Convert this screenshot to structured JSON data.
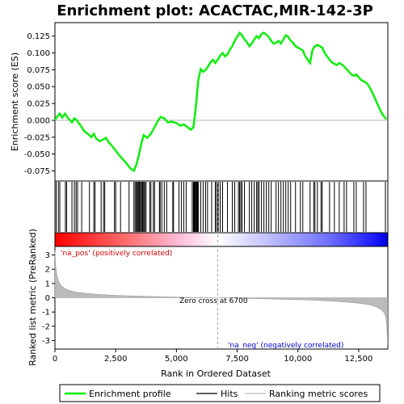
{
  "chart_data": {
    "type": "line",
    "title": "Enrichment plot: ACACTAC,MIR-142-3P",
    "xlabel": "Rank in Ordered Dataset",
    "es_ylabel": "Enrichment score (ES)",
    "metric_ylabel": "Ranked list metric (PreRanked)",
    "x_ticks": [
      "0",
      "2,500",
      "5,000",
      "7,500",
      "10,000",
      "12,500"
    ],
    "x_tick_values": [
      0,
      2500,
      5000,
      7500,
      10000,
      12500
    ],
    "xlim": [
      0,
      13700
    ],
    "es_ylim": [
      -0.09,
      0.145
    ],
    "es_ticks": [
      "-0.075",
      "-0.050",
      "-0.025",
      "0.000",
      "0.025",
      "0.050",
      "0.075",
      "0.100",
      "0.125"
    ],
    "es_tick_values": [
      -0.075,
      -0.05,
      -0.025,
      0.0,
      0.025,
      0.05,
      0.075,
      0.1,
      0.125
    ],
    "metric_ylim": [
      -3.6,
      3.6
    ],
    "metric_ticks": [
      "3",
      "2",
      "1",
      "0",
      "-1",
      "-2",
      "-3"
    ],
    "metric_tick_values": [
      3,
      2,
      1,
      0,
      -1,
      -2,
      -3
    ],
    "zero_cross_label": "Zero cross at 6700",
    "zero_cross": 6700,
    "pos_label": "'na_pos' (positively correlated)",
    "neg_label": "'na_neg' (negatively correlated)",
    "legend": [
      "Enrichment profile",
      "Hits",
      "Ranking metric scores"
    ],
    "colors": {
      "profile": "#00ee00",
      "hits": "#000000",
      "metric": "#bbbbbb",
      "pos_text": "#cc0000",
      "neg_text": "#0000cc"
    },
    "series": [
      {
        "name": "Enrichment profile",
        "x": [
          0,
          100,
          200,
          300,
          420,
          500,
          600,
          700,
          800,
          880,
          1000,
          1100,
          1200,
          1350,
          1500,
          1600,
          1700,
          1850,
          2000,
          2100,
          2200,
          2350,
          2500,
          2650,
          2800,
          2950,
          3100,
          3250,
          3350,
          3450,
          3550,
          3650,
          3800,
          3950,
          4100,
          4250,
          4350,
          4500,
          4650,
          4800,
          5000,
          5150,
          5300,
          5450,
          5600,
          5700,
          5750,
          5800,
          5850,
          5900,
          6000,
          6100,
          6200,
          6300,
          6400,
          6500,
          6600,
          6700,
          6800,
          6900,
          7000,
          7100,
          7200,
          7300,
          7400,
          7500,
          7600,
          7700,
          7800,
          7900,
          8000,
          8100,
          8200,
          8300,
          8400,
          8500,
          8600,
          8700,
          8800,
          8900,
          9000,
          9100,
          9200,
          9300,
          9400,
          9500,
          9600,
          9700,
          9800,
          9900,
          10000,
          10100,
          10200,
          10300,
          10400,
          10500,
          10600,
          10700,
          10800,
          10900,
          11000,
          11100,
          11200,
          11300,
          11400,
          11500,
          11600,
          11700,
          11800,
          11900,
          12000,
          12100,
          12200,
          12300,
          12400,
          12500,
          12600,
          12700,
          12800,
          12900,
          13000,
          13100,
          13200,
          13300,
          13400,
          13500,
          13600,
          13650
        ],
        "y": [
          0.0,
          0.006,
          0.01,
          0.004,
          0.01,
          0.005,
          0.001,
          -0.003,
          0.003,
          0.001,
          -0.005,
          -0.01,
          -0.016,
          -0.02,
          -0.025,
          -0.02,
          -0.027,
          -0.031,
          -0.028,
          -0.026,
          -0.032,
          -0.038,
          -0.045,
          -0.052,
          -0.058,
          -0.064,
          -0.071,
          -0.075,
          -0.066,
          -0.052,
          -0.035,
          -0.022,
          -0.026,
          -0.02,
          -0.01,
          0.0,
          0.005,
          0.003,
          -0.003,
          -0.002,
          -0.004,
          -0.008,
          -0.006,
          -0.01,
          -0.014,
          -0.01,
          0.005,
          0.02,
          0.04,
          0.06,
          0.076,
          0.072,
          0.075,
          0.08,
          0.086,
          0.09,
          0.085,
          0.09,
          0.096,
          0.1,
          0.095,
          0.098,
          0.105,
          0.11,
          0.118,
          0.124,
          0.13,
          0.126,
          0.12,
          0.116,
          0.11,
          0.114,
          0.12,
          0.125,
          0.122,
          0.128,
          0.13,
          0.127,
          0.124,
          0.118,
          0.114,
          0.115,
          0.118,
          0.114,
          0.12,
          0.126,
          0.124,
          0.118,
          0.115,
          0.11,
          0.108,
          0.106,
          0.104,
          0.095,
          0.09,
          0.085,
          0.105,
          0.11,
          0.112,
          0.11,
          0.108,
          0.1,
          0.095,
          0.09,
          0.086,
          0.084,
          0.082,
          0.085,
          0.083,
          0.08,
          0.076,
          0.072,
          0.068,
          0.066,
          0.068,
          0.064,
          0.06,
          0.058,
          0.056,
          0.052,
          0.046,
          0.038,
          0.03,
          0.022,
          0.014,
          0.008,
          0.003,
          0.002
        ]
      },
      {
        "name": "Hits",
        "x": [
          50,
          140,
          200,
          430,
          480,
          700,
          800,
          870,
          930,
          1100,
          1420,
          1600,
          1650,
          1900,
          2000,
          2050,
          2450,
          2500,
          2700,
          3050,
          3250,
          3300,
          3350,
          3380,
          3420,
          3450,
          3480,
          3520,
          3560,
          3600,
          3620,
          3660,
          3700,
          3750,
          3900,
          3950,
          4050,
          4100,
          4300,
          4330,
          4400,
          4500,
          4600,
          4850,
          4880,
          5100,
          5200,
          5300,
          5400,
          5650,
          5700,
          5720,
          5750,
          5780,
          5810,
          5830,
          5850,
          5870,
          5900,
          6000,
          6100,
          6200,
          6280,
          6450,
          6600,
          6650,
          6700,
          6720,
          6800,
          6900,
          7100,
          7300,
          7400,
          7550,
          7600,
          7650,
          7700,
          7800,
          8000,
          8100,
          8200,
          8300,
          8350,
          8400,
          8500,
          8600,
          8700,
          8800,
          8900,
          9100,
          9200,
          9300,
          9400,
          9500,
          9600,
          9700,
          9900,
          10100,
          10200,
          10500,
          10650,
          10700,
          10800,
          10950,
          11000,
          11300,
          11500,
          11700,
          11900,
          12000,
          12300,
          12400,
          12700,
          12800,
          13600
        ]
      },
      {
        "name": "Ranking metric scores",
        "x": [
          0,
          30,
          80,
          150,
          250,
          400,
          600,
          900,
          1300,
          1800,
          2500,
          3500,
          4500,
          5500,
          6300,
          6700,
          7500,
          8500,
          9500,
          10500,
          11300,
          12000,
          12500,
          12900,
          13200,
          13400,
          13550,
          13620,
          13660,
          13690
        ],
        "y": [
          3.3,
          2.2,
          1.6,
          1.15,
          0.85,
          0.65,
          0.5,
          0.38,
          0.3,
          0.23,
          0.17,
          0.11,
          0.06,
          0.03,
          0.01,
          0.0,
          -0.03,
          -0.07,
          -0.11,
          -0.16,
          -0.22,
          -0.3,
          -0.38,
          -0.48,
          -0.62,
          -0.8,
          -1.05,
          -1.4,
          -2.0,
          -3.3
        ]
      }
    ]
  }
}
